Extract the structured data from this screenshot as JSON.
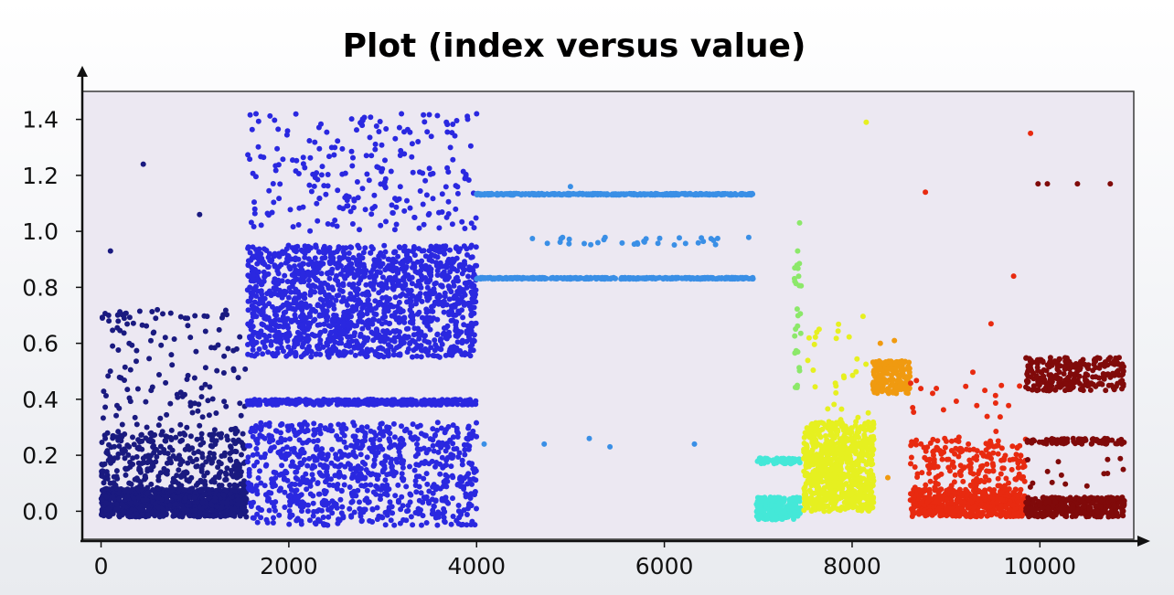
{
  "chart_data": {
    "type": "scatter",
    "title": "Plot (index versus value)",
    "xlabel": "",
    "ylabel": "",
    "xlim": [
      -200,
      11000
    ],
    "ylim": [
      -0.1,
      1.5
    ],
    "x_ticks": [
      0,
      2000,
      4000,
      6000,
      8000,
      10000
    ],
    "y_ticks": [
      0.0,
      0.2,
      0.4,
      0.6,
      0.8,
      1.0,
      1.2,
      1.4
    ],
    "y_tick_labels": [
      "0.0",
      "0.2",
      "0.4",
      "0.6",
      "0.8",
      "1.0",
      "1.2",
      "1.4"
    ],
    "grid": false,
    "plot_background": "#ece8f2",
    "series": [
      {
        "color": "#1a1a80",
        "clusters": [
          {
            "x": [
              0,
              1550
            ],
            "y": [
              -0.02,
              0.08
            ],
            "count": 900
          },
          {
            "x": [
              0,
              1550
            ],
            "y": [
              0.08,
              0.28
            ],
            "count": 330
          },
          {
            "x": [
              0,
              1550
            ],
            "y": [
              0.28,
              0.72
            ],
            "count": 140
          }
        ],
        "points": [
          [
            100,
            0.93
          ],
          [
            450,
            1.24
          ],
          [
            1050,
            1.06
          ],
          [
            80,
            0.7
          ],
          [
            600,
            0.72
          ]
        ]
      },
      {
        "color": "#2a28e0",
        "clusters": [
          {
            "x": [
              1560,
              4000
            ],
            "y": [
              0.55,
              0.95
            ],
            "count": 1500
          },
          {
            "x": [
              1560,
              4000
            ],
            "y": [
              -0.05,
              0.32
            ],
            "count": 850
          },
          {
            "x": [
              1560,
              4000
            ],
            "y": [
              0.38,
              0.4
            ],
            "count": 360
          },
          {
            "x": [
              1560,
              4000
            ],
            "y": [
              1.0,
              1.42
            ],
            "count": 230
          }
        ],
        "points": [
          [
            1650,
            1.42
          ],
          [
            3200,
            1.42
          ],
          [
            4000,
            1.42
          ]
        ]
      },
      {
        "color": "#3a8fe6",
        "clusters": [
          {
            "x": [
              4000,
              6950
            ],
            "y": [
              1.13,
              1.135
            ],
            "count": 420
          },
          {
            "x": [
              4000,
              6950
            ],
            "y": [
              0.83,
              0.835
            ],
            "count": 420
          },
          {
            "x": [
              4350,
              6900
            ],
            "y": [
              0.95,
              0.98
            ],
            "count": 32
          }
        ],
        "points": [
          [
            4080,
            0.24
          ],
          [
            4720,
            0.24
          ],
          [
            5200,
            0.26
          ],
          [
            5420,
            0.23
          ],
          [
            6320,
            0.24
          ],
          [
            5000,
            1.16
          ]
        ]
      },
      {
        "color": "#44e8d8",
        "clusters": [
          {
            "x": [
              6980,
              7450
            ],
            "y": [
              -0.03,
              0.05
            ],
            "count": 230
          },
          {
            "x": [
              6980,
              7450
            ],
            "y": [
              0.17,
              0.19
            ],
            "count": 60
          }
        ],
        "points": []
      },
      {
        "color": "#8ce86a",
        "clusters": [
          {
            "x": [
              7380,
              7460
            ],
            "y": [
              0.4,
              0.9
            ],
            "count": 25
          }
        ],
        "points": [
          [
            7440,
            1.03
          ],
          [
            7420,
            0.93
          ]
        ]
      },
      {
        "color": "#e6f020",
        "clusters": [
          {
            "x": [
              7480,
              8230
            ],
            "y": [
              0.0,
              0.32
            ],
            "count": 820
          },
          {
            "x": [
              7480,
              8230
            ],
            "y": [
              0.32,
              0.7
            ],
            "count": 28
          }
        ],
        "points": [
          [
            8150,
            1.39
          ]
        ]
      },
      {
        "color": "#f09a10",
        "clusters": [
          {
            "x": [
              8220,
              8620
            ],
            "y": [
              0.42,
              0.54
            ],
            "count": 190
          }
        ],
        "points": [
          [
            8300,
            0.6
          ],
          [
            8450,
            0.61
          ],
          [
            8380,
            0.12
          ]
        ]
      },
      {
        "color": "#e82a10",
        "clusters": [
          {
            "x": [
              8620,
              9850
            ],
            "y": [
              -0.02,
              0.08
            ],
            "count": 520
          },
          {
            "x": [
              8620,
              9850
            ],
            "y": [
              0.08,
              0.26
            ],
            "count": 190
          },
          {
            "x": [
              8620,
              9850
            ],
            "y": [
              0.26,
              0.5
            ],
            "count": 22
          }
        ],
        "points": [
          [
            8780,
            1.14
          ],
          [
            9480,
            0.67
          ],
          [
            9720,
            0.84
          ],
          [
            9900,
            1.35
          ]
        ]
      },
      {
        "color": "#800a0a",
        "clusters": [
          {
            "x": [
              9850,
              10900
            ],
            "y": [
              -0.02,
              0.05
            ],
            "count": 360
          },
          {
            "x": [
              9850,
              10900
            ],
            "y": [
              0.43,
              0.55
            ],
            "count": 260
          },
          {
            "x": [
              9850,
              10900
            ],
            "y": [
              0.24,
              0.26
            ],
            "count": 75
          },
          {
            "x": [
              9850,
              10900
            ],
            "y": [
              0.06,
              0.2
            ],
            "count": 14
          }
        ],
        "points": [
          [
            9980,
            1.17
          ],
          [
            10080,
            1.17
          ],
          [
            10400,
            1.17
          ],
          [
            10750,
            1.17
          ]
        ]
      }
    ]
  }
}
